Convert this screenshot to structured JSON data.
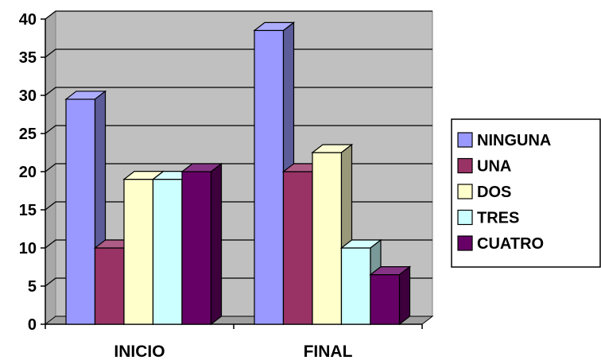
{
  "chart_data": {
    "type": "bar",
    "title": "",
    "xlabel": "",
    "ylabel": "",
    "categories": [
      "INICIO",
      "FINAL"
    ],
    "ylim": [
      0,
      40
    ],
    "yticks": [
      0,
      5,
      10,
      15,
      20,
      25,
      30,
      35,
      40
    ],
    "grid": true,
    "legend_position": "right",
    "series": [
      {
        "name": "NINGUNA",
        "values": [
          29.5,
          38.5
        ],
        "color": "#9999ff"
      },
      {
        "name": "UNA",
        "values": [
          10,
          20
        ],
        "color": "#993366"
      },
      {
        "name": "DOS",
        "values": [
          19,
          22.5
        ],
        "color": "#ffffcc"
      },
      {
        "name": "TRES",
        "values": [
          19,
          10
        ],
        "color": "#ccffff"
      },
      {
        "name": "CUATRO",
        "values": [
          20,
          6.5
        ],
        "color": "#660066"
      }
    ]
  }
}
